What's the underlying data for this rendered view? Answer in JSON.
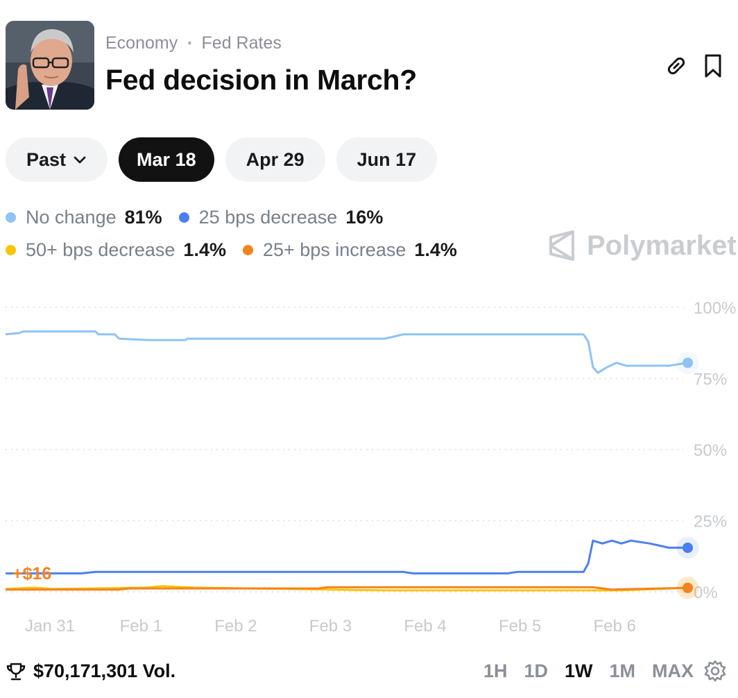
{
  "header": {
    "category": "Economy",
    "subcategory": "Fed Rates",
    "title": "Fed decision in March?",
    "link_icon": "link-icon",
    "bookmark_icon": "bookmark-icon"
  },
  "tabs": [
    {
      "label": "Past",
      "icon": "chevron-down-icon"
    },
    {
      "label": "Mar 18",
      "active": true
    },
    {
      "label": "Apr 29"
    },
    {
      "label": "Jun 17"
    }
  ],
  "legend": [
    {
      "name": "No change",
      "value": "81%",
      "color": "#8fc2f5"
    },
    {
      "name": "25 bps decrease",
      "value": "16%",
      "color": "#4a7ff0"
    },
    {
      "name": "50+ bps decrease",
      "value": "1.4%",
      "color": "#f7c600"
    },
    {
      "name": "25+ bps increase",
      "value": "1.4%",
      "color": "#f58220"
    }
  ],
  "brand": "Polymarket",
  "chart_data": {
    "type": "line",
    "x_labels": [
      "Jan 31",
      "Feb 1",
      "Feb 2",
      "Feb 3",
      "Feb 4",
      "Feb 5",
      "Feb 6"
    ],
    "y_ticks": [
      "100%",
      "75%",
      "50%",
      "25%",
      "0%"
    ],
    "ylim": [
      0,
      100
    ],
    "annotation": "+$16",
    "series": [
      {
        "name": "No change",
        "color": "#8fc2f5",
        "points": [
          [
            0.0,
            90.5
          ],
          [
            0.15,
            91
          ],
          [
            0.18,
            91.5
          ],
          [
            0.95,
            91.5
          ],
          [
            0.98,
            90.5
          ],
          [
            1.15,
            90.5
          ],
          [
            1.2,
            89
          ],
          [
            1.5,
            88.5
          ],
          [
            1.9,
            88.5
          ],
          [
            1.92,
            89
          ],
          [
            2.25,
            89
          ],
          [
            2.5,
            89
          ],
          [
            3.0,
            89
          ],
          [
            3.5,
            89
          ],
          [
            4.0,
            89
          ],
          [
            4.2,
            90.5
          ],
          [
            5.0,
            90.5
          ],
          [
            6.1,
            90.5
          ],
          [
            6.15,
            88
          ],
          [
            6.2,
            79
          ],
          [
            6.25,
            77
          ],
          [
            6.3,
            78
          ],
          [
            6.35,
            79
          ],
          [
            6.45,
            80.5
          ],
          [
            6.55,
            79.5
          ],
          [
            7.0,
            79.5
          ],
          [
            7.2,
            80.5
          ]
        ]
      },
      {
        "name": "25 bps decrease",
        "color": "#4a7ff0",
        "points": [
          [
            0.0,
            6.5
          ],
          [
            0.8,
            6.5
          ],
          [
            0.95,
            7
          ],
          [
            4.2,
            7
          ],
          [
            4.3,
            6.5
          ],
          [
            5.3,
            6.5
          ],
          [
            5.4,
            7
          ],
          [
            6.1,
            7
          ],
          [
            6.15,
            10
          ],
          [
            6.2,
            18
          ],
          [
            6.3,
            17
          ],
          [
            6.4,
            18
          ],
          [
            6.5,
            17
          ],
          [
            6.6,
            18
          ],
          [
            6.8,
            17
          ],
          [
            7.0,
            15.5
          ],
          [
            7.2,
            15.5
          ]
        ]
      },
      {
        "name": "50+ bps decrease",
        "color": "#f7c600",
        "points": [
          [
            0.0,
            1
          ],
          [
            0.3,
            1.5
          ],
          [
            0.5,
            1
          ],
          [
            1.5,
            1.5
          ],
          [
            1.65,
            2
          ],
          [
            2.0,
            1.5
          ],
          [
            3.0,
            1
          ],
          [
            4.0,
            0.5
          ],
          [
            5.0,
            0.5
          ],
          [
            6.0,
            0.5
          ],
          [
            6.5,
            0.5
          ],
          [
            7.2,
            1.4
          ]
        ]
      },
      {
        "name": "25+ bps increase",
        "color": "#f58220",
        "points": [
          [
            0.0,
            0.8
          ],
          [
            1.2,
            0.8
          ],
          [
            1.3,
            1.2
          ],
          [
            3.3,
            1.2
          ],
          [
            3.4,
            1.6
          ],
          [
            6.2,
            1.6
          ],
          [
            6.4,
            0.8
          ],
          [
            7.2,
            1.4
          ]
        ]
      }
    ]
  },
  "footer": {
    "volume": "$70,171,301 Vol.",
    "trophy_icon": "trophy-icon",
    "ranges": [
      "1H",
      "1D",
      "1W",
      "1M",
      "MAX"
    ],
    "active_range": "1W",
    "settings_icon": "gear-icon"
  }
}
